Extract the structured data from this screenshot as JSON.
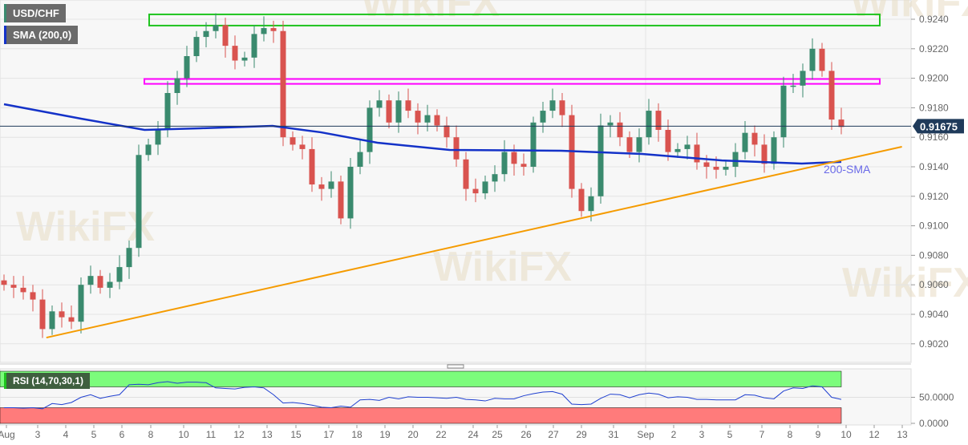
{
  "legend": {
    "symbol": "USD/CHF",
    "sma": "SMA (200,0)",
    "rsi": "RSI (14,70,30,1)"
  },
  "watermark": "WikiFX",
  "colors": {
    "bull": "#3a8a6e",
    "bear": "#d9534f",
    "sma": "#1432c8",
    "trendline": "#f59b00",
    "resistance_top": "#1fc41f",
    "resistance_mid": "#ff00ff",
    "rsi_line": "#2040d0",
    "rsi_overbought": "#7cfc7c",
    "rsi_oversold": "#ff7b7b",
    "price_label_bg": "#1f3a5a"
  },
  "chart_data": [
    {
      "type": "candlestick",
      "title": "USD/CHF",
      "ylim": [
        0.9005,
        0.925
      ],
      "y_ticks": [
        "0.9020",
        "0.9040",
        "0.9060",
        "0.9080",
        "0.9100",
        "0.9120",
        "0.9140",
        "0.9160",
        "0.9180",
        "0.9200",
        "0.9220",
        "0.9240"
      ],
      "x_ticks": [
        "Aug",
        "3",
        "4",
        "5",
        "6",
        "8",
        "10",
        "11",
        "12",
        "13",
        "15",
        "17",
        "18",
        "19",
        "20",
        "22",
        "24",
        "25",
        "26",
        "27",
        "29",
        "31",
        "Sep",
        "2",
        "3",
        "5",
        "7",
        "8",
        "9",
        "10",
        "12",
        "13"
      ],
      "close": [
        0.906,
        0.9058,
        0.9055,
        0.905,
        0.903,
        0.9042,
        0.9038,
        0.9035,
        0.906,
        0.9066,
        0.9058,
        0.9062,
        0.9072,
        0.9085,
        0.9148,
        0.9155,
        0.9165,
        0.919,
        0.92,
        0.9215,
        0.9228,
        0.9232,
        0.9236,
        0.9222,
        0.9212,
        0.9214,
        0.923,
        0.9234,
        0.9232,
        0.916,
        0.9155,
        0.9152,
        0.9128,
        0.9125,
        0.913,
        0.9105,
        0.914,
        0.915,
        0.918,
        0.9185,
        0.917,
        0.9185,
        0.9178,
        0.917,
        0.9175,
        0.9168,
        0.916,
        0.9145,
        0.9125,
        0.9122,
        0.913,
        0.9135,
        0.915,
        0.9142,
        0.914,
        0.917,
        0.9178,
        0.9185,
        0.9175,
        0.9125,
        0.911,
        0.912,
        0.9168,
        0.917,
        0.916,
        0.915,
        0.916,
        0.9178,
        0.9165,
        0.915,
        0.9152,
        0.9155,
        0.9143,
        0.914,
        0.9138,
        0.914,
        0.915,
        0.9163,
        0.9155,
        0.9142,
        0.916,
        0.9195,
        0.9195,
        0.9205,
        0.922,
        0.9205,
        0.9172,
        0.9167
      ],
      "sma_200": [
        [
          0,
          0.91824
        ],
        [
          8,
          0.91726
        ],
        [
          14.6,
          0.9165
        ],
        [
          20.4,
          0.91661
        ],
        [
          27.9,
          0.91677
        ],
        [
          32.9,
          0.91634
        ],
        [
          38.8,
          0.91563
        ],
        [
          46.3,
          0.91514
        ],
        [
          57.9,
          0.91509
        ],
        [
          66.3,
          0.91487
        ],
        [
          74.6,
          0.91443
        ],
        [
          82.9,
          0.91422
        ],
        [
          87,
          0.91433
        ]
      ],
      "sma_label": "200-SMA",
      "trendline": [
        [
          4.4,
          0.90242
        ],
        [
          93.3,
          0.91536
        ]
      ],
      "resistance_zones": [
        {
          "from": 0.92357,
          "to": 0.92433,
          "color": "#1fc41f"
        },
        {
          "from": 0.91962,
          "to": 0.91995,
          "color": "#ff00ff"
        }
      ],
      "last_price": "0.91675"
    },
    {
      "type": "line",
      "title": "RSI (14,70,30,1)",
      "ylim": [
        0,
        100
      ],
      "levels": [
        70,
        30
      ],
      "y_ticks": [
        "50.0000",
        "0.0000"
      ],
      "values": [
        30,
        30,
        29,
        30,
        28,
        38,
        36,
        40,
        50,
        55,
        48,
        52,
        55,
        74,
        75,
        74,
        78,
        80,
        77,
        79,
        79,
        78,
        68,
        67,
        66,
        69,
        70,
        68,
        55,
        39,
        40,
        38,
        35,
        31,
        30,
        33,
        31,
        45,
        46,
        44,
        50,
        47,
        51,
        50,
        50,
        49,
        48,
        50,
        46,
        45,
        43,
        48,
        47,
        47,
        53,
        57,
        60,
        61,
        56,
        37,
        36,
        37,
        48,
        56,
        55,
        49,
        55,
        58,
        56,
        49,
        51,
        50,
        46,
        46,
        45,
        45,
        45,
        55,
        54,
        49,
        47,
        62,
        68,
        67,
        72,
        70,
        50,
        46
      ]
    }
  ]
}
